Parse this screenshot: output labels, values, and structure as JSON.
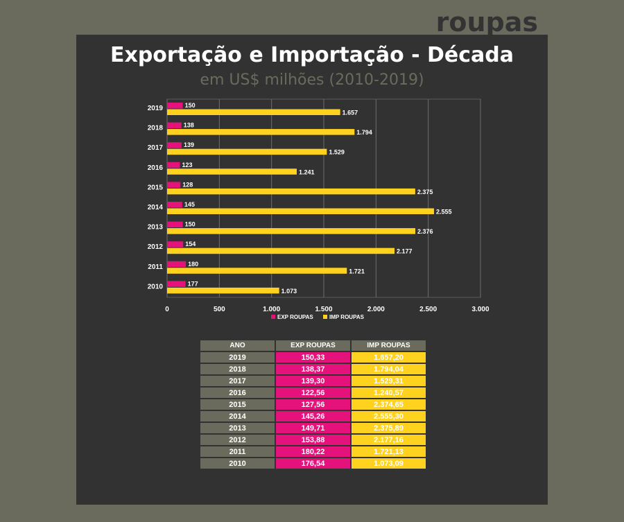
{
  "brand": "roupas",
  "colors": {
    "exp": "#e6127b",
    "imp": "#ffd21f",
    "panel": "#323232",
    "olive": "#6b6b5d"
  },
  "chart_data": {
    "type": "bar",
    "orientation": "horizontal",
    "title": "Exportação e Importação - Década",
    "subtitle": "em US$ milhões (2010-2019)",
    "categories": [
      "2019",
      "2018",
      "2017",
      "2016",
      "2015",
      "2014",
      "2013",
      "2012",
      "2011",
      "2010"
    ],
    "series": [
      {
        "name": "EXP ROUPAS",
        "values": [
          150,
          138,
          139,
          123,
          128,
          145,
          150,
          154,
          180,
          177
        ],
        "labels": [
          "150",
          "138",
          "139",
          "123",
          "128",
          "145",
          "150",
          "154",
          "180",
          "177"
        ]
      },
      {
        "name": "IMP ROUPAS",
        "values": [
          1657,
          1794,
          1529,
          1241,
          2375,
          2555,
          2376,
          2177,
          1721,
          1073
        ],
        "labels": [
          "1.657",
          "1.794",
          "1.529",
          "1.241",
          "2.375",
          "2.555",
          "2.376",
          "2.177",
          "1.721",
          "1.073"
        ]
      }
    ],
    "xlim": [
      0,
      3000
    ],
    "xticks": [
      0,
      500,
      1000,
      1500,
      2000,
      2500,
      3000
    ],
    "xtick_labels": [
      "0",
      "500",
      "1.000",
      "1.500",
      "2.000",
      "2.500",
      "3.000"
    ],
    "grid": true,
    "legend_position": "bottom"
  },
  "table": {
    "headers": [
      "ANO",
      "EXP ROUPAS",
      "IMP ROUPAS"
    ],
    "rows": [
      [
        "2019",
        "150,33",
        "1.657,20"
      ],
      [
        "2018",
        "138,37",
        "1.794,04"
      ],
      [
        "2017",
        "139,30",
        "1.529,31"
      ],
      [
        "2016",
        "122,56",
        "1.240,57"
      ],
      [
        "2015",
        "127,56",
        "2.374,65"
      ],
      [
        "2014",
        "145,26",
        "2.555,30"
      ],
      [
        "2013",
        "149,71",
        "2.375,89"
      ],
      [
        "2012",
        "153,88",
        "2.177,16"
      ],
      [
        "2011",
        "180,22",
        "1.721,13"
      ],
      [
        "2010",
        "176,54",
        "1.073,09"
      ]
    ]
  }
}
